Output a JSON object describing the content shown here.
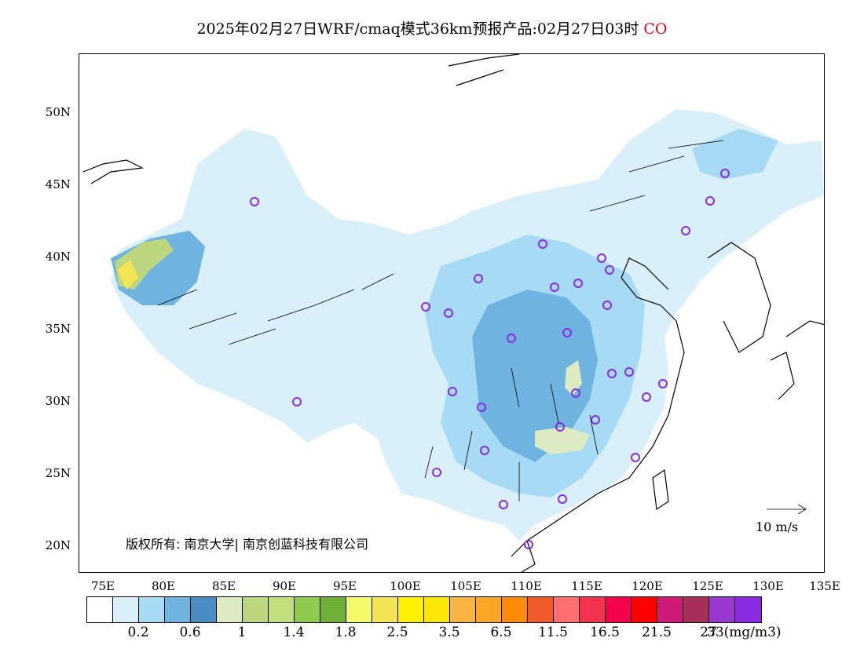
{
  "title": {
    "main": "2025年02月27日WRF/cmaq模式36km预报产品:02月27日03时",
    "species": "CO",
    "species_color": "#e0001a"
  },
  "lat_labels": [
    "50N",
    "45N",
    "40N",
    "35N",
    "30N",
    "25N",
    "20N"
  ],
  "lon_labels": [
    "75E",
    "80E",
    "85E",
    "90E",
    "95E",
    "100E",
    "105E",
    "110E",
    "115E",
    "120E",
    "125E",
    "130E",
    "135E"
  ],
  "copyright": "版权所有: 南京大学| 南京创蓝科技有限公司",
  "wind_reference": "10 m/s",
  "colorbar": {
    "colors": [
      "#ffffff",
      "#d9f0fb",
      "#a7dbf5",
      "#6fb4e0",
      "#4a8dc4",
      "#dcebc2",
      "#bdd77e",
      "#c2df7d",
      "#8fcc4e",
      "#6fae37",
      "#f3fb6a",
      "#f2e455",
      "#fdf100",
      "#fde60a",
      "#f7b441",
      "#f8a623",
      "#fb8a05",
      "#f05a2b",
      "#ff6f70",
      "#f2344f",
      "#f4004d",
      "#ff0000",
      "#cf1a78",
      "#a72f5a",
      "#9a37d0",
      "#8a2be2"
    ],
    "labels": [
      "0.2",
      "0.6",
      "1",
      "1.4",
      "1.8",
      "2.5",
      "3.5",
      "6.5",
      "11.5",
      "16.5",
      "21.5",
      "27",
      "33(mg/m3)"
    ]
  }
}
